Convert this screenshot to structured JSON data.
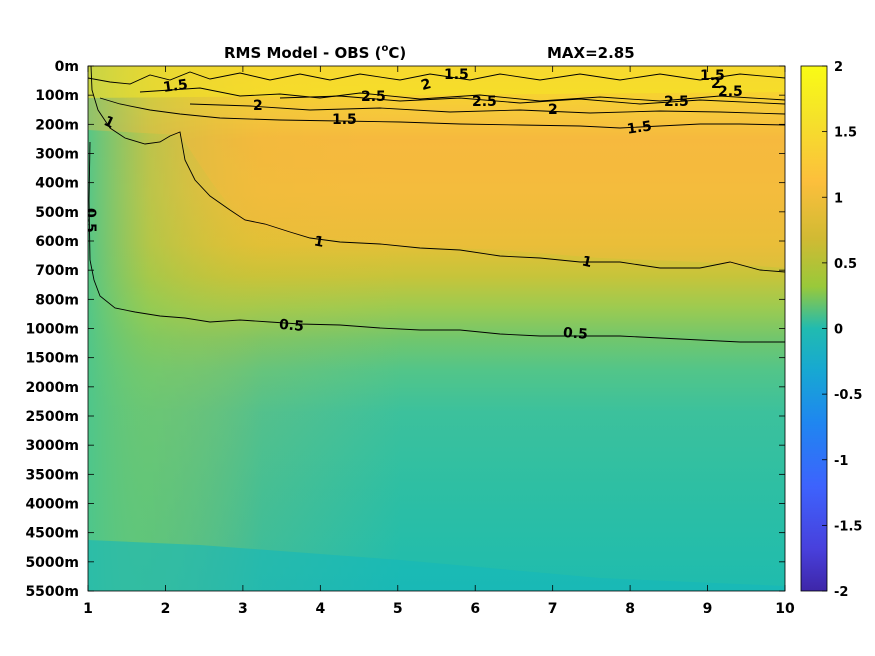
{
  "chart_data": {
    "type": "heatmap",
    "title": "RMS Model - OBS (",
    "title_sup": "o",
    "title_unit": "C)",
    "max_label": "MAX=2.85",
    "x_ticks": [
      "1",
      "2",
      "3",
      "4",
      "5",
      "6",
      "7",
      "8",
      "9",
      "10"
    ],
    "xlim": [
      1,
      10
    ],
    "y_ticks": [
      "0m",
      "100m",
      "200m",
      "300m",
      "400m",
      "500m",
      "600m",
      "700m",
      "800m",
      "1000m",
      "1500m",
      "2000m",
      "2500m",
      "3000m",
      "3500m",
      "4000m",
      "4500m",
      "5000m",
      "5500m"
    ],
    "colorbar": {
      "ticks": [
        "2",
        "1.5",
        "1",
        "0.5",
        "0",
        "-0.5",
        "-1",
        "-1.5",
        "-2"
      ],
      "range": [
        -2,
        2
      ],
      "colormap": [
        "#3e26a8",
        "#4743f8",
        "#2c86fb",
        "#17b1d0",
        "#1ac0a2",
        "#48cb6b",
        "#96ca3a",
        "#d8ba32",
        "#fdbd3c",
        "#f4de22",
        "#f9fb15"
      ]
    },
    "contour_levels": [
      0.5,
      1,
      1.5,
      2,
      2.5
    ],
    "contour_labels": [
      {
        "text": "1.5",
        "x": 2.15,
        "depth": "100m"
      },
      {
        "text": "1.5",
        "x": 5.75,
        "depth": "50m"
      },
      {
        "text": "1.5",
        "x": 9.05,
        "depth": "25m"
      },
      {
        "text": "2",
        "x": 5.4,
        "depth": "50m"
      },
      {
        "text": "2",
        "x": 9.1,
        "depth": "50m"
      },
      {
        "text": "2",
        "x": 3.2,
        "depth": "150m"
      },
      {
        "text": "2",
        "x": 7.0,
        "depth": "150m"
      },
      {
        "text": "2.5",
        "x": 4.6,
        "depth": "100m"
      },
      {
        "text": "2.5",
        "x": 6.2,
        "depth": "125m"
      },
      {
        "text": "2.5",
        "x": 8.6,
        "depth": "125m"
      },
      {
        "text": "2.5",
        "x": 9.3,
        "depth": "75m"
      },
      {
        "text": "1.5",
        "x": 4.35,
        "depth": "175m"
      },
      {
        "text": "1.5",
        "x": 8.15,
        "depth": "200m"
      },
      {
        "text": "1",
        "x": 1.3,
        "depth": "200m"
      },
      {
        "text": "1",
        "x": 4.0,
        "depth": "600m"
      },
      {
        "text": "1",
        "x": 7.45,
        "depth": "650m"
      },
      {
        "text": "0.5",
        "x": 1.05,
        "depth": "500m"
      },
      {
        "text": "0.5",
        "x": 3.65,
        "depth": "1000m"
      },
      {
        "text": "0.5",
        "x": 7.3,
        "depth": "1000m"
      }
    ],
    "grid": false,
    "legend": "none"
  }
}
